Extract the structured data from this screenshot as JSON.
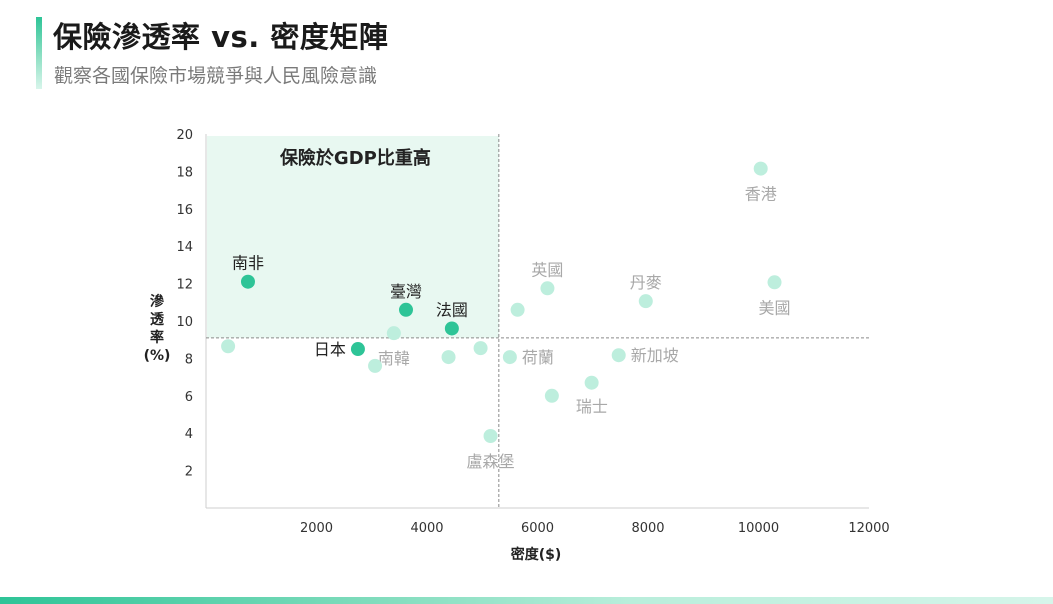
{
  "header": {
    "title": "保險滲透率 vs. 密度矩陣",
    "subtitle": "觀察各國保險市場競爭與人民風險意識"
  },
  "colors": {
    "accent": "#2ec497",
    "muted_point": "#bdeedd",
    "highlight_region": "#e8f8f1",
    "muted_label": "#a8a8a8",
    "dark_label": "#222222"
  },
  "chart_data": {
    "type": "scatter",
    "title": "保險滲透率 vs. 密度矩陣",
    "subtitle": "觀察各國保險市場競爭與人民風險意識",
    "xlabel": "密度($)",
    "ylabel": "滲透率(%)",
    "ylabel_lines": [
      "滲",
      "透",
      "率",
      "(%)"
    ],
    "xlim": [
      0,
      12000
    ],
    "ylim": [
      0,
      20
    ],
    "x_ticks": [
      2000,
      4000,
      6000,
      8000,
      10000,
      12000
    ],
    "y_ticks": [
      2,
      4,
      6,
      8,
      10,
      12,
      14,
      16,
      18,
      20
    ],
    "grid": false,
    "reference_lines": {
      "x": 5300,
      "y": 9.1
    },
    "highlight_region": {
      "label": "保險於GDP比重高",
      "x": [
        0,
        5300
      ],
      "y": [
        9.1,
        20
      ]
    },
    "points": [
      {
        "label": "南非",
        "x": 760,
        "y": 12.1,
        "highlight": true,
        "label_pos": "above"
      },
      {
        "label": "臺灣",
        "x": 3620,
        "y": 10.6,
        "highlight": true,
        "label_pos": "above"
      },
      {
        "label": "法國",
        "x": 4450,
        "y": 9.6,
        "highlight": true,
        "label_pos": "above"
      },
      {
        "label": "日本",
        "x": 2750,
        "y": 8.5,
        "highlight": true,
        "label_pos": "left"
      },
      {
        "label": "南韓",
        "x": 3400,
        "y": 9.35,
        "highlight": false,
        "label_pos": "below"
      },
      {
        "label": "",
        "x": 400,
        "y": 8.65,
        "highlight": false
      },
      {
        "label": "",
        "x": 3060,
        "y": 7.6,
        "highlight": false
      },
      {
        "label": "",
        "x": 4390,
        "y": 8.07,
        "highlight": false
      },
      {
        "label": "",
        "x": 4970,
        "y": 8.55,
        "highlight": false
      },
      {
        "label": "盧森堡",
        "x": 5150,
        "y": 3.85,
        "highlight": false,
        "label_pos": "below"
      },
      {
        "label": "荷蘭",
        "x": 5500,
        "y": 8.07,
        "highlight": false,
        "label_pos": "right"
      },
      {
        "label": "",
        "x": 5640,
        "y": 10.6,
        "highlight": false
      },
      {
        "label": "英國",
        "x": 6180,
        "y": 11.75,
        "highlight": false,
        "label_pos": "above"
      },
      {
        "label": "瑞士",
        "x": 6260,
        "y": 6.0,
        "highlight": false,
        "label_pos": "below-right"
      },
      {
        "label": "",
        "x": 6980,
        "y": 6.7,
        "highlight": false
      },
      {
        "label": "新加坡",
        "x": 7470,
        "y": 8.17,
        "highlight": false,
        "label_pos": "right"
      },
      {
        "label": "丹麥",
        "x": 7960,
        "y": 11.06,
        "highlight": false,
        "label_pos": "above"
      },
      {
        "label": "香港",
        "x": 10040,
        "y": 18.15,
        "highlight": false,
        "label_pos": "below"
      },
      {
        "label": "美國",
        "x": 10290,
        "y": 12.07,
        "highlight": false,
        "label_pos": "below"
      }
    ]
  }
}
